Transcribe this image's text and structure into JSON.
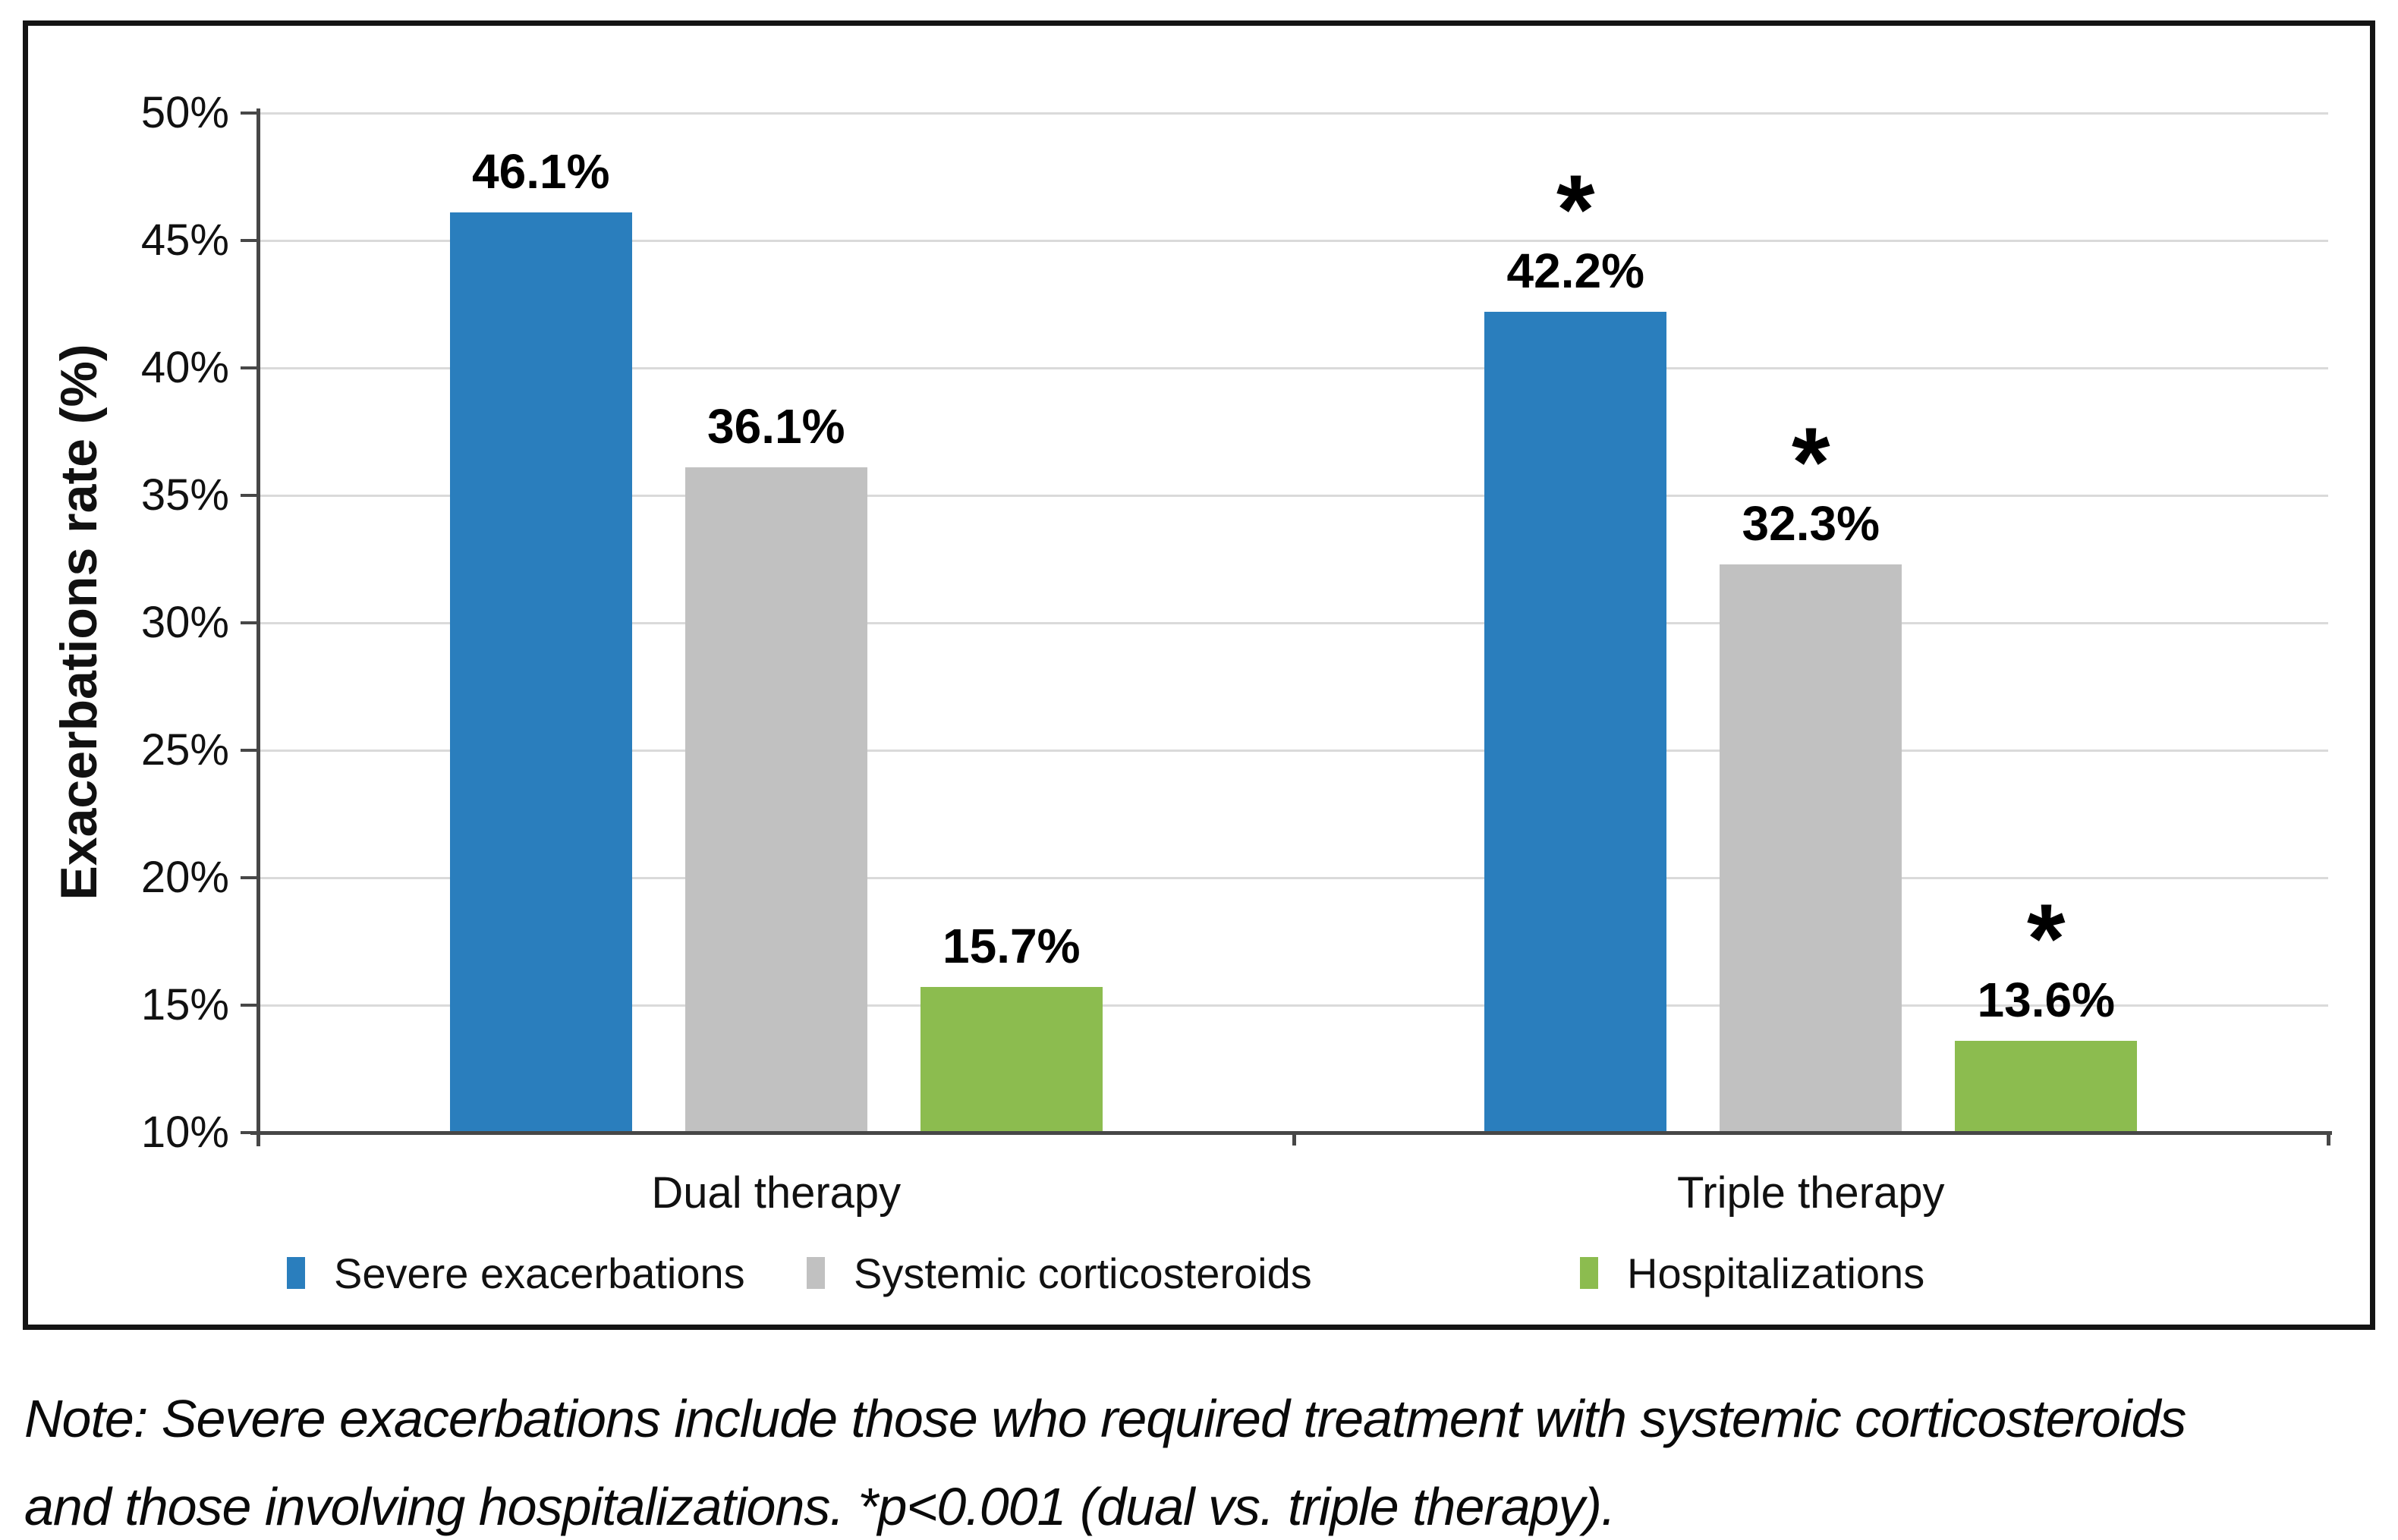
{
  "figure": {
    "note_line1": "Note: Severe exacerbations include those who required treatment with systemic corticosteroids",
    "note_line2": "and those involving hospitalizations. *p<0.001 (dual vs. triple therapy)."
  },
  "chart_data": {
    "type": "bar",
    "title": "",
    "ylabel": "Exacerbations rate (%)",
    "xlabel": "",
    "categories": [
      "Dual therapy",
      "Triple therapy"
    ],
    "series": [
      {
        "name": "Severe exacerbations",
        "color": "#2A7EBD",
        "values": [
          46.1,
          42.2
        ],
        "data_labels": [
          "46.1%",
          "42.2%"
        ]
      },
      {
        "name": "Systemic corticosteroids",
        "color": "#C1C1C1",
        "values": [
          36.1,
          32.3
        ],
        "data_labels": [
          "36.1%",
          "32.3%"
        ]
      },
      {
        "name": "Hospitalizations",
        "color": "#8CBC4F",
        "values": [
          15.7,
          13.6
        ],
        "data_labels": [
          "15.7%",
          "13.6%"
        ]
      }
    ],
    "significance": {
      "marker": "*",
      "categories_with_marker": [
        "Triple therapy"
      ]
    },
    "ylim": [
      10,
      50
    ],
    "ytick_step": 5,
    "ytick_labels": [
      "10%",
      "15%",
      "20%",
      "25%",
      "30%",
      "35%",
      "40%",
      "45%",
      "50%"
    ],
    "grid": true,
    "legend_position": "bottom",
    "styles": {
      "grid_color": "#DADADA",
      "axis_color": "#474747",
      "frame_color": "#141414",
      "text_color": "#111111"
    }
  }
}
